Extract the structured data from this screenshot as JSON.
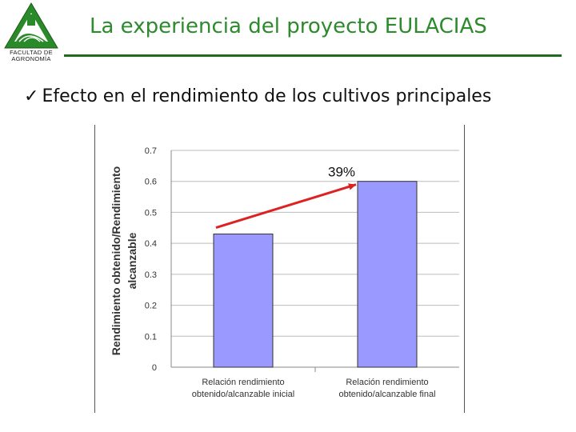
{
  "header": {
    "logo_text": "FACULTAD DE AGRONOMÍA",
    "logo_caption_line1": "FACULTAD DE",
    "logo_caption_line2": "AGRONOMÍA",
    "title": "La experiencia del proyecto EULACIAS"
  },
  "bullet": {
    "text": "Efecto en el rendimiento de los cultivos principales",
    "icon": "check-icon"
  },
  "colors": {
    "title": "#2d8a2d",
    "rule": "#1f6b1f",
    "bar": "#9999ff",
    "arrow": "#dd2222"
  },
  "chart_data": {
    "type": "bar",
    "categories": [
      [
        "Relación rendimiento",
        "obtenido/alcanzable inicial"
      ],
      [
        "Relación rendimiento",
        "obtenido/alcanzable final"
      ]
    ],
    "values": [
      0.43,
      0.6
    ],
    "ylabel_line1": "Rendimiento obtenido/Rendimiento",
    "ylabel_line2": "alcanzable",
    "ylim": [
      0,
      0.7
    ],
    "yticks": [
      "0",
      "0.1",
      "0.2",
      "0.3",
      "0.4",
      "0.5",
      "0.6",
      "0.7"
    ],
    "grid": true,
    "annotation": "39%"
  }
}
